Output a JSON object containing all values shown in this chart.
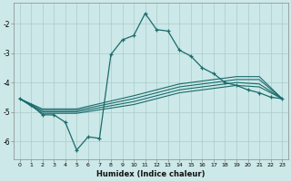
{
  "xlabel": "Humidex (Indice chaleur)",
  "background_color": "#cce8e8",
  "grid_color": "#aacccc",
  "line_color": "#1a6b6b",
  "xlim": [
    -0.5,
    23.5
  ],
  "ylim": [
    -6.6,
    -1.3
  ],
  "yticks": [
    -2,
    -3,
    -4,
    -5,
    -6
  ],
  "xticks": [
    0,
    1,
    2,
    3,
    4,
    5,
    6,
    7,
    8,
    9,
    10,
    11,
    12,
    13,
    14,
    15,
    16,
    17,
    18,
    19,
    20,
    21,
    22,
    23
  ],
  "line1_x": [
    0,
    1,
    2,
    3,
    4,
    5,
    6,
    7,
    8,
    9,
    10,
    11,
    12,
    13,
    14,
    15,
    16,
    17,
    18,
    19,
    20,
    21,
    22,
    23
  ],
  "line1_y": [
    -4.55,
    -4.75,
    -5.1,
    -5.1,
    -5.35,
    -6.3,
    -5.85,
    -5.9,
    -3.05,
    -2.55,
    -2.4,
    -1.65,
    -2.2,
    -2.25,
    -2.9,
    -3.1,
    -3.5,
    -3.7,
    -4.0,
    -4.1,
    -4.25,
    -4.35,
    -4.5,
    -4.55
  ],
  "line2_x": [
    0,
    2,
    5,
    10,
    14,
    17,
    19,
    21,
    23
  ],
  "line2_y": [
    -4.55,
    -4.9,
    -4.9,
    -4.45,
    -4.05,
    -3.9,
    -3.8,
    -3.8,
    -4.55
  ],
  "line3_x": [
    0,
    2,
    5,
    10,
    14,
    17,
    19,
    21,
    23
  ],
  "line3_y": [
    -4.55,
    -4.95,
    -4.95,
    -4.55,
    -4.15,
    -4.0,
    -3.9,
    -3.9,
    -4.55
  ],
  "line4_x": [
    0,
    2,
    5,
    10,
    14,
    17,
    19,
    21,
    23
  ],
  "line4_y": [
    -4.55,
    -5.0,
    -5.0,
    -4.65,
    -4.25,
    -4.1,
    -4.0,
    -4.05,
    -4.55
  ],
  "line5_x": [
    0,
    2,
    5,
    10,
    14,
    17,
    19,
    21,
    23
  ],
  "line5_y": [
    -4.55,
    -5.05,
    -5.05,
    -4.75,
    -4.35,
    -4.2,
    -4.1,
    -4.15,
    -4.55
  ]
}
